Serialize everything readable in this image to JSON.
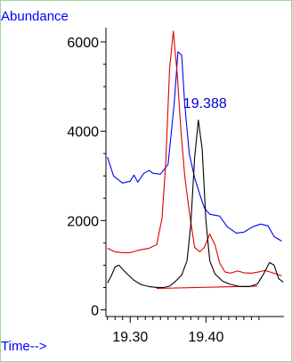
{
  "chart_data": {
    "type": "line",
    "ylabel": "Abundance",
    "xlabel": "Time-->",
    "xlim": [
      19.268,
      19.503
    ],
    "ylim": [
      -150,
      6320
    ],
    "x_ticks": [
      19.3,
      19.4
    ],
    "x_tick_labels": [
      "19.30",
      "19.40"
    ],
    "y_ticks": [
      0,
      2000,
      4000,
      6000
    ],
    "y_tick_labels": [
      "0",
      "2000",
      "4000",
      "6000"
    ],
    "grid": false,
    "annotations": [
      {
        "text": "19.388",
        "x": 19.37,
        "y": 4520,
        "color": "#0000cc"
      }
    ],
    "series": [
      {
        "color": "#0000ff",
        "points": [
          [
            19.27,
            3420
          ],
          [
            19.278,
            3000
          ],
          [
            19.29,
            2840
          ],
          [
            19.3,
            2880
          ],
          [
            19.305,
            3020
          ],
          [
            19.31,
            2860
          ],
          [
            19.318,
            3060
          ],
          [
            19.325,
            3120
          ],
          [
            19.33,
            3060
          ],
          [
            19.34,
            3040
          ],
          [
            19.35,
            3260
          ],
          [
            19.358,
            4600
          ],
          [
            19.363,
            5780
          ],
          [
            19.368,
            5700
          ],
          [
            19.372,
            4600
          ],
          [
            19.378,
            3500
          ],
          [
            19.385,
            2960
          ],
          [
            19.392,
            2580
          ],
          [
            19.398,
            2280
          ],
          [
            19.405,
            2140
          ],
          [
            19.418,
            2100
          ],
          [
            19.428,
            1860
          ],
          [
            19.44,
            1720
          ],
          [
            19.45,
            1740
          ],
          [
            19.462,
            1860
          ],
          [
            19.472,
            1920
          ],
          [
            19.482,
            1880
          ],
          [
            19.49,
            1640
          ],
          [
            19.5,
            1540
          ]
        ]
      },
      {
        "color": "#dd0000",
        "points": [
          [
            19.27,
            1380
          ],
          [
            19.28,
            1300
          ],
          [
            19.29,
            1280
          ],
          [
            19.3,
            1280
          ],
          [
            19.312,
            1340
          ],
          [
            19.325,
            1380
          ],
          [
            19.335,
            1460
          ],
          [
            19.342,
            2050
          ],
          [
            19.347,
            3300
          ],
          [
            19.352,
            5400
          ],
          [
            19.357,
            6240
          ],
          [
            19.362,
            5300
          ],
          [
            19.367,
            4000
          ],
          [
            19.372,
            3000
          ],
          [
            19.378,
            2200
          ],
          [
            19.385,
            1400
          ],
          [
            19.392,
            1300
          ],
          [
            19.398,
            1400
          ],
          [
            19.405,
            1700
          ],
          [
            19.412,
            1450
          ],
          [
            19.418,
            1050
          ],
          [
            19.425,
            850
          ],
          [
            19.432,
            820
          ],
          [
            19.442,
            870
          ],
          [
            19.45,
            830
          ],
          [
            19.46,
            820
          ],
          [
            19.47,
            850
          ],
          [
            19.478,
            880
          ],
          [
            19.488,
            830
          ],
          [
            19.5,
            760
          ]
        ]
      },
      {
        "color": "#dd0000",
        "points": [
          [
            19.335,
            480
          ],
          [
            19.468,
            530
          ]
        ]
      },
      {
        "color": "#000000",
        "points": [
          [
            19.27,
            600
          ],
          [
            19.275,
            760
          ],
          [
            19.28,
            960
          ],
          [
            19.285,
            1000
          ],
          [
            19.295,
            820
          ],
          [
            19.305,
            660
          ],
          [
            19.315,
            560
          ],
          [
            19.325,
            520
          ],
          [
            19.335,
            500
          ],
          [
            19.345,
            500
          ],
          [
            19.352,
            530
          ],
          [
            19.36,
            640
          ],
          [
            19.368,
            780
          ],
          [
            19.375,
            1100
          ],
          [
            19.38,
            1900
          ],
          [
            19.385,
            3400
          ],
          [
            19.39,
            4250
          ],
          [
            19.395,
            3600
          ],
          [
            19.4,
            2000
          ],
          [
            19.405,
            1100
          ],
          [
            19.412,
            800
          ],
          [
            19.422,
            640
          ],
          [
            19.432,
            570
          ],
          [
            19.445,
            520
          ],
          [
            19.458,
            520
          ],
          [
            19.468,
            580
          ],
          [
            19.476,
            800
          ],
          [
            19.484,
            1060
          ],
          [
            19.49,
            1000
          ],
          [
            19.496,
            700
          ],
          [
            19.502,
            620
          ]
        ]
      }
    ]
  }
}
